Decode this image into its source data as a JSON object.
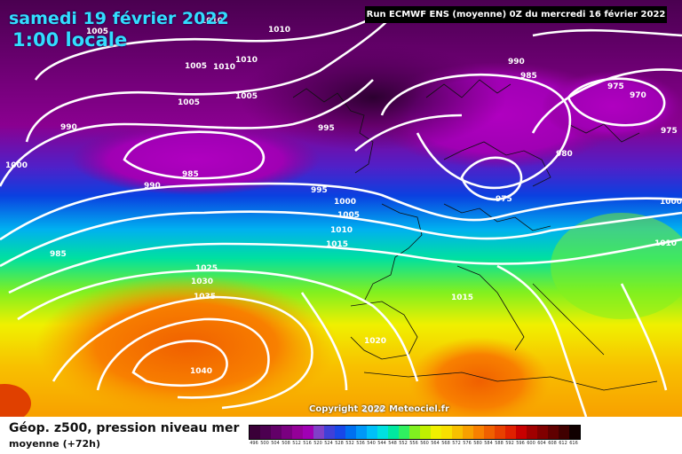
{
  "header": {
    "date_title": "samedi 19 février 2022",
    "local_time": "1:00 locale",
    "run_info": "Run ECMWF ENS (moyenne) 0Z du mercredi 16 février 2022"
  },
  "map": {
    "copyright": "Copyright 2022 Meteociel.fr",
    "isobar_labels": [
      "1010",
      "1005",
      "1010",
      "1010",
      "1005",
      "1010",
      "1005",
      "1005",
      "990",
      "1000",
      "995",
      "985",
      "990",
      "985",
      "990",
      "985",
      "975",
      "970",
      "975",
      "980",
      "975",
      "995",
      "1000",
      "1005",
      "1010",
      "1015",
      "1000",
      "1010",
      "1025",
      "1030",
      "1035",
      "1040",
      "1015",
      "1020",
      "1020"
    ]
  },
  "legend": {
    "title": "Géop. z500, pression niveau mer",
    "subtitle": "moyenne   (+72h)",
    "scale_labels": [
      "496",
      "500",
      "504",
      "508",
      "512",
      "516",
      "520",
      "524",
      "528",
      "532",
      "536",
      "540",
      "544",
      "548",
      "552",
      "556",
      "560",
      "564",
      "568",
      "572",
      "576",
      "580",
      "584",
      "588",
      "592",
      "596",
      "600",
      "604",
      "608",
      "612",
      "616"
    ],
    "scale_colors": [
      "#3a0038",
      "#4c0050",
      "#620068",
      "#7a0080",
      "#940098",
      "#a000b4",
      "#8040c8",
      "#4040d8",
      "#1848e8",
      "#0070f0",
      "#0098f8",
      "#00c0f8",
      "#00e0e0",
      "#00e8a0",
      "#30f060",
      "#80f020",
      "#c0f000",
      "#f0f000",
      "#f8e000",
      "#f8c000",
      "#f8a000",
      "#f88000",
      "#f06000",
      "#e84000",
      "#e02000",
      "#c80000",
      "#a00000",
      "#800000",
      "#600000",
      "#400000",
      "#100000"
    ]
  }
}
